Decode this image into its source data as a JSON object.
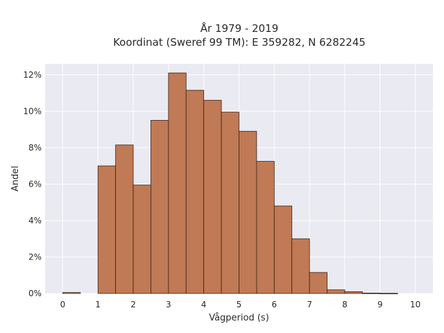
{
  "chart_data": {
    "type": "bar",
    "title": "År 1979 - 2019",
    "subtitle": "Koordinat (Sweref 99 TM): E 359282, N 6282245",
    "xlabel": "Vågperiod (s)",
    "ylabel": "Andel",
    "xlim": [
      -0.5,
      10.5
    ],
    "ylim": [
      0,
      12.6
    ],
    "x_ticks": [
      0,
      1,
      2,
      3,
      4,
      5,
      6,
      7,
      8,
      9,
      10
    ],
    "y_ticks": [
      0,
      2,
      4,
      6,
      8,
      10,
      12
    ],
    "y_tick_labels": [
      "0%",
      "2%",
      "4%",
      "6%",
      "8%",
      "10%",
      "12%"
    ],
    "grid": true,
    "bar_color": "#c07a55",
    "bar_edge_color": "#3a2218",
    "plot_background": "#eaeaf2",
    "bin_width": 0.5,
    "bins": [
      {
        "x0": 0.0,
        "value": 0.05
      },
      {
        "x0": 0.5,
        "value": 0.0
      },
      {
        "x0": 1.0,
        "value": 7.0
      },
      {
        "x0": 1.5,
        "value": 8.15
      },
      {
        "x0": 2.0,
        "value": 5.95
      },
      {
        "x0": 2.5,
        "value": 9.5
      },
      {
        "x0": 3.0,
        "value": 12.1
      },
      {
        "x0": 3.5,
        "value": 11.15
      },
      {
        "x0": 4.0,
        "value": 10.6
      },
      {
        "x0": 4.5,
        "value": 9.95
      },
      {
        "x0": 5.0,
        "value": 8.9
      },
      {
        "x0": 5.5,
        "value": 7.25
      },
      {
        "x0": 6.0,
        "value": 4.8
      },
      {
        "x0": 6.5,
        "value": 3.0
      },
      {
        "x0": 7.0,
        "value": 1.15
      },
      {
        "x0": 7.5,
        "value": 0.2
      },
      {
        "x0": 8.0,
        "value": 0.1
      },
      {
        "x0": 8.5,
        "value": 0.02
      },
      {
        "x0": 9.0,
        "value": 0.01
      }
    ]
  }
}
